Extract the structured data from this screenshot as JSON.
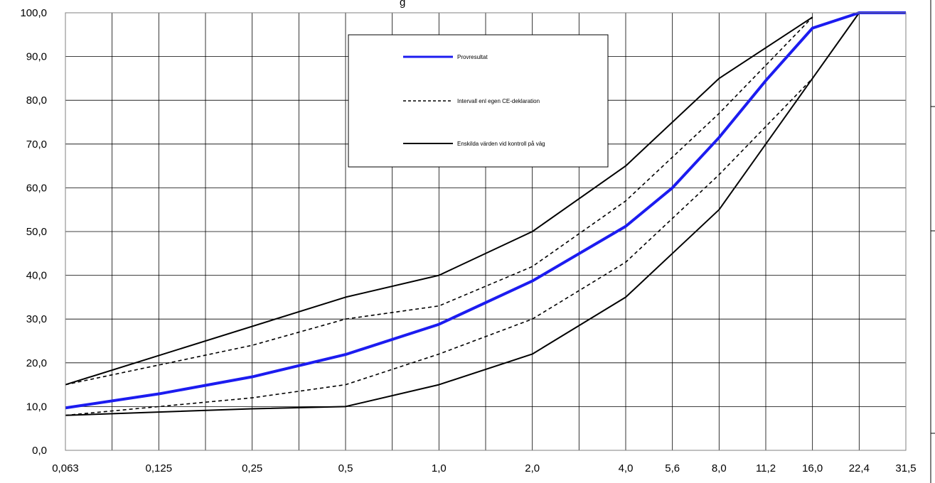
{
  "chart_data": {
    "type": "line",
    "title_fragment": "g",
    "x": [
      "0,063",
      "0,125",
      "0,25",
      "0,5",
      "1,0",
      "2,0",
      "4,0",
      "5,6",
      "8,0",
      "11,2",
      "16,0",
      "22,4",
      "31,5"
    ],
    "y_ticks": [
      "0,0",
      "10,0",
      "20,0",
      "30,0",
      "40,0",
      "50,0",
      "60,0",
      "70,0",
      "80,0",
      "90,0",
      "100,0"
    ],
    "ylim": [
      0,
      100
    ],
    "grid": true,
    "legend_placement": "top-center",
    "series": [
      {
        "name": "Provresultat",
        "style": "solid-thick",
        "color": "#1c1cf0",
        "points": [
          [
            "0,063",
            9.7
          ],
          [
            "0,125",
            12.9
          ],
          [
            "0,25",
            16.8
          ],
          [
            "0,5",
            21.9
          ],
          [
            "1,0",
            28.8
          ],
          [
            "2,0",
            38.7
          ],
          [
            "4,0",
            51.2
          ],
          [
            "5,6",
            60.0
          ],
          [
            "8,0",
            71.5
          ],
          [
            "11,2",
            84.5
          ],
          [
            "16,0",
            96.5
          ],
          [
            "22,4",
            100.0
          ],
          [
            "31,5",
            100.0
          ]
        ]
      },
      {
        "name": "Intervall enl egen CE-deklaration",
        "style": "dashed",
        "color": "#000000",
        "bands": [
          [
            [
              "0,063",
              15.0
            ],
            [
              "0,125",
              19.5
            ],
            [
              "0,25",
              24.0
            ],
            [
              "0,5",
              30.0
            ],
            [
              "1,0",
              33.0
            ],
            [
              "2,0",
              42.0
            ],
            [
              "4,0",
              57.0
            ],
            [
              "8,0",
              77.0
            ],
            [
              "16,0",
              99.0
            ]
          ],
          [
            [
              "0,063",
              8.0
            ],
            [
              "0,125",
              10.0
            ],
            [
              "0,25",
              12.0
            ],
            [
              "0,5",
              15.0
            ],
            [
              "1,0",
              22.0
            ],
            [
              "2,0",
              30.0
            ],
            [
              "4,0",
              43.0
            ],
            [
              "8,0",
              63.0
            ],
            [
              "16,0",
              85.0
            ],
            [
              "22,4",
              100.0
            ]
          ]
        ]
      },
      {
        "name": "Enskilda värden vid kontroll på väg",
        "style": "solid",
        "color": "#000000",
        "bands": [
          [
            [
              "0,063",
              15.0
            ],
            [
              "0,5",
              35.0
            ],
            [
              "1,0",
              40.0
            ],
            [
              "2,0",
              50.0
            ],
            [
              "4,0",
              65.0
            ],
            [
              "8,0",
              85.0
            ],
            [
              "16,0",
              99.0
            ]
          ],
          [
            [
              "0,063",
              8.0
            ],
            [
              "0,25",
              9.5
            ],
            [
              "0,5",
              10.0
            ],
            [
              "1,0",
              15.0
            ],
            [
              "2,0",
              22.0
            ],
            [
              "4,0",
              35.0
            ],
            [
              "5,6",
              45.0
            ],
            [
              "8,0",
              55.0
            ],
            [
              "11,2",
              70.0
            ],
            [
              "16,0",
              85.0
            ],
            [
              "22,4",
              100.0
            ],
            [
              "31,5",
              100.0
            ]
          ]
        ]
      }
    ]
  }
}
